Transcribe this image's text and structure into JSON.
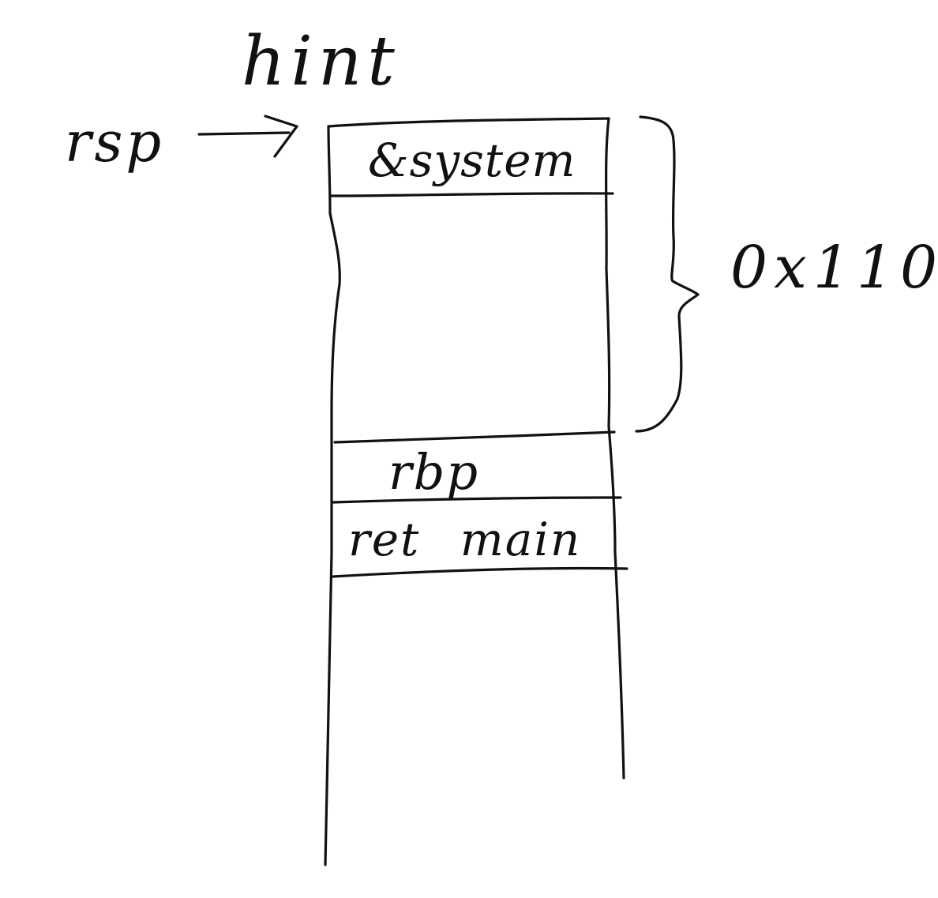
{
  "diagram": {
    "title": "hint",
    "pointer_label": "rsp",
    "stack_slots": [
      {
        "label": "&system"
      },
      {
        "label": ""
      },
      {
        "label": "rbp"
      },
      {
        "label": "ret  main"
      }
    ],
    "buffer_size_label": "0x110"
  },
  "colors": {
    "ink": "#111111",
    "background": "#ffffff"
  }
}
